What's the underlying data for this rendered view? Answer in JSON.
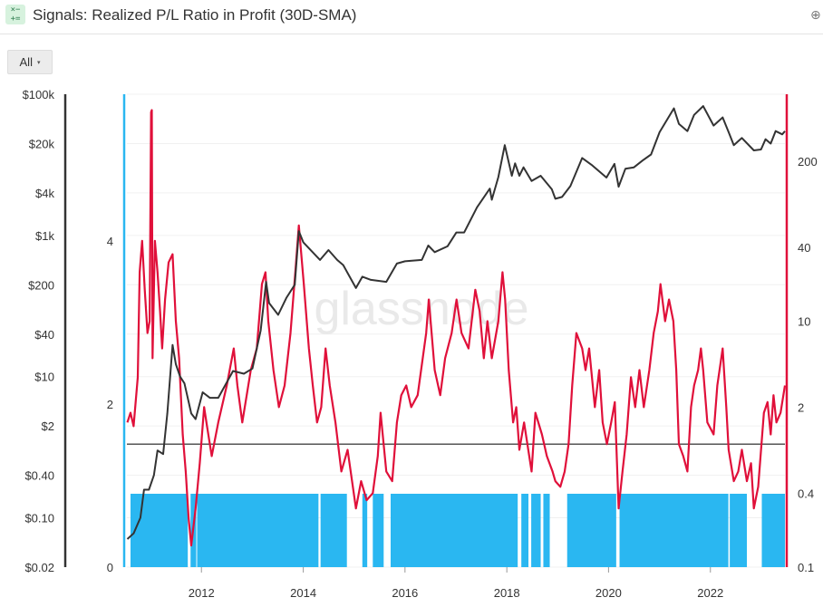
{
  "header": {
    "title": "Signals: Realized P/L Ratio in Profit (30D-SMA)",
    "icon_name": "calculator-icon",
    "zoom_icon_name": "zoom-in-icon"
  },
  "toolbar": {
    "filter_label": "All",
    "filter_caret": "▾"
  },
  "watermark": "glassnode",
  "chart_data": {
    "type": "line",
    "title": "Signals: Realized P/L Ratio in Profit (30D-SMA)",
    "xlabel": "",
    "ylabel": "",
    "x_range": [
      "2010-07-15",
      "2023-06-20"
    ],
    "grid": {
      "horizontal": true,
      "vertical": false
    },
    "x_ticks": [
      "2012",
      "2014",
      "2016",
      "2018",
      "2020",
      "2022"
    ],
    "axes": {
      "price": {
        "position": "far-left",
        "scale": "log",
        "range": [
          0.02,
          100000
        ],
        "color": "#333333",
        "ticks": [
          0.02,
          0.1,
          0.4,
          2,
          10,
          40,
          200,
          1000,
          4000,
          20000,
          100000
        ],
        "tick_labels": [
          "$0.02",
          "$0.10",
          "$0.40",
          "$2",
          "$10",
          "$40",
          "$200",
          "$1k",
          "$4k",
          "$20k",
          "$100k"
        ]
      },
      "signal": {
        "position": "left",
        "scale": "linear",
        "range": [
          0,
          5.8
        ],
        "color": "#2ab7f1",
        "ticks": [
          0,
          2,
          4
        ],
        "tick_labels": [
          "0",
          "2",
          "4"
        ]
      },
      "ratio": {
        "position": "right",
        "scale": "log",
        "range": [
          0.1,
          700
        ],
        "color": "#e0103a",
        "ticks": [
          0.1,
          0.4,
          2,
          10,
          40,
          200
        ],
        "tick_labels": [
          "0.1",
          "0.4",
          "2",
          "10",
          "40",
          "200"
        ]
      }
    },
    "reference_line": {
      "axis": "ratio",
      "value": 1,
      "color": "#555555"
    },
    "series": [
      {
        "kind": "line",
        "axis": "price",
        "color": "#333333",
        "points": [
          [
            "2010-07-18",
            0.05
          ],
          [
            "2010-09-01",
            0.06
          ],
          [
            "2010-10-20",
            0.1
          ],
          [
            "2010-11-15",
            0.25
          ],
          [
            "2010-12-20",
            0.25
          ],
          [
            "2011-01-25",
            0.4
          ],
          [
            "2011-02-20",
            0.9
          ],
          [
            "2011-04-01",
            0.8
          ],
          [
            "2011-05-01",
            3
          ],
          [
            "2011-06-08",
            28
          ],
          [
            "2011-07-01",
            15
          ],
          [
            "2011-08-01",
            10
          ],
          [
            "2011-09-01",
            8
          ],
          [
            "2011-10-20",
            3
          ],
          [
            "2011-11-20",
            2.5
          ],
          [
            "2012-01-10",
            6
          ],
          [
            "2012-03-01",
            5
          ],
          [
            "2012-05-01",
            5
          ],
          [
            "2012-08-15",
            12
          ],
          [
            "2012-11-01",
            11
          ],
          [
            "2013-01-01",
            13
          ],
          [
            "2013-03-01",
            45
          ],
          [
            "2013-04-09",
            220
          ],
          [
            "2013-05-01",
            110
          ],
          [
            "2013-07-05",
            75
          ],
          [
            "2013-09-01",
            130
          ],
          [
            "2013-11-01",
            200
          ],
          [
            "2013-11-30",
            1150
          ],
          [
            "2014-01-01",
            800
          ],
          [
            "2014-03-01",
            600
          ],
          [
            "2014-05-01",
            450
          ],
          [
            "2014-07-01",
            620
          ],
          [
            "2014-09-01",
            450
          ],
          [
            "2014-10-15",
            380
          ],
          [
            "2015-01-14",
            180
          ],
          [
            "2015-03-01",
            260
          ],
          [
            "2015-05-01",
            235
          ],
          [
            "2015-08-20",
            220
          ],
          [
            "2015-11-04",
            400
          ],
          [
            "2016-01-01",
            430
          ],
          [
            "2016-05-01",
            450
          ],
          [
            "2016-06-16",
            720
          ],
          [
            "2016-08-01",
            580
          ],
          [
            "2016-11-01",
            700
          ],
          [
            "2017-01-04",
            1100
          ],
          [
            "2017-03-01",
            1100
          ],
          [
            "2017-06-01",
            2500
          ],
          [
            "2017-09-01",
            4600
          ],
          [
            "2017-09-15",
            3200
          ],
          [
            "2017-11-01",
            6700
          ],
          [
            "2017-12-17",
            19000
          ],
          [
            "2018-02-06",
            7000
          ],
          [
            "2018-03-01",
            10500
          ],
          [
            "2018-04-01",
            7000
          ],
          [
            "2018-05-01",
            9200
          ],
          [
            "2018-06-28",
            5900
          ],
          [
            "2018-09-01",
            7000
          ],
          [
            "2018-11-20",
            4500
          ],
          [
            "2018-12-15",
            3300
          ],
          [
            "2019-02-01",
            3500
          ],
          [
            "2019-04-02",
            5000
          ],
          [
            "2019-06-26",
            12500
          ],
          [
            "2019-09-01",
            10000
          ],
          [
            "2019-12-17",
            6600
          ],
          [
            "2020-02-12",
            10300
          ],
          [
            "2020-03-13",
            4900
          ],
          [
            "2020-05-01",
            8800
          ],
          [
            "2020-07-01",
            9200
          ],
          [
            "2020-09-01",
            11500
          ],
          [
            "2020-11-01",
            14000
          ],
          [
            "2021-01-01",
            29000
          ],
          [
            "2021-04-14",
            63000
          ],
          [
            "2021-05-20",
            38000
          ],
          [
            "2021-07-20",
            30000
          ],
          [
            "2021-09-06",
            51000
          ],
          [
            "2021-11-10",
            68000
          ],
          [
            "2022-01-24",
            36000
          ],
          [
            "2022-03-30",
            47000
          ],
          [
            "2022-05-12",
            29000
          ],
          [
            "2022-06-18",
            19000
          ],
          [
            "2022-08-15",
            24000
          ],
          [
            "2022-11-09",
            16000
          ],
          [
            "2022-12-30",
            16500
          ],
          [
            "2023-02-01",
            23000
          ],
          [
            "2023-03-10",
            20000
          ],
          [
            "2023-04-14",
            30000
          ],
          [
            "2023-06-01",
            27000
          ],
          [
            "2023-06-20",
            30000
          ]
        ]
      },
      {
        "kind": "line",
        "axis": "ratio",
        "color": "#e0103a",
        "points": [
          [
            "2010-07-18",
            1.5
          ],
          [
            "2010-08-10",
            1.8
          ],
          [
            "2010-09-01",
            1.4
          ],
          [
            "2010-10-01",
            3.5
          ],
          [
            "2010-10-15",
            25
          ],
          [
            "2010-11-01",
            45
          ],
          [
            "2010-11-20",
            18
          ],
          [
            "2010-12-10",
            8
          ],
          [
            "2010-12-25",
            10
          ],
          [
            "2011-01-05",
            500
          ],
          [
            "2011-01-10",
            520
          ],
          [
            "2011-01-15",
            5
          ],
          [
            "2011-02-01",
            45
          ],
          [
            "2011-02-20",
            25
          ],
          [
            "2011-03-10",
            12
          ],
          [
            "2011-03-25",
            6
          ],
          [
            "2011-04-15",
            15
          ],
          [
            "2011-05-10",
            30
          ],
          [
            "2011-06-08",
            35
          ],
          [
            "2011-07-01",
            10
          ],
          [
            "2011-07-25",
            5
          ],
          [
            "2011-08-20",
            1.2
          ],
          [
            "2011-09-10",
            0.6
          ],
          [
            "2011-10-01",
            0.25
          ],
          [
            "2011-10-20",
            0.15
          ],
          [
            "2011-11-20",
            0.3
          ],
          [
            "2011-12-20",
            0.7
          ],
          [
            "2012-01-20",
            2
          ],
          [
            "2012-02-10",
            1.4
          ],
          [
            "2012-03-15",
            0.8
          ],
          [
            "2012-05-01",
            1.5
          ],
          [
            "2012-07-01",
            3
          ],
          [
            "2012-08-20",
            6
          ],
          [
            "2012-09-15",
            3
          ],
          [
            "2012-10-20",
            1.5
          ],
          [
            "2012-12-20",
            4
          ],
          [
            "2013-02-01",
            6
          ],
          [
            "2013-03-10",
            20
          ],
          [
            "2013-04-05",
            25
          ],
          [
            "2013-04-25",
            10
          ],
          [
            "2013-06-01",
            4
          ],
          [
            "2013-07-10",
            2
          ],
          [
            "2013-08-20",
            3
          ],
          [
            "2013-10-01",
            8
          ],
          [
            "2013-11-05",
            25
          ],
          [
            "2013-11-30",
            60
          ],
          [
            "2014-01-05",
            20
          ],
          [
            "2014-02-10",
            6
          ],
          [
            "2014-03-10",
            3
          ],
          [
            "2014-04-10",
            1.5
          ],
          [
            "2014-05-10",
            2
          ],
          [
            "2014-06-10",
            6
          ],
          [
            "2014-07-10",
            3
          ],
          [
            "2014-08-20",
            1.5
          ],
          [
            "2014-10-01",
            0.6
          ],
          [
            "2014-11-15",
            0.9
          ],
          [
            "2015-01-14",
            0.3
          ],
          [
            "2015-02-20",
            0.5
          ],
          [
            "2015-04-01",
            0.35
          ],
          [
            "2015-05-15",
            0.4
          ],
          [
            "2015-06-20",
            0.8
          ],
          [
            "2015-07-10",
            1.8
          ],
          [
            "2015-08-20",
            0.6
          ],
          [
            "2015-10-01",
            0.5
          ],
          [
            "2015-11-04",
            1.5
          ],
          [
            "2015-12-05",
            2.5
          ],
          [
            "2016-01-10",
            3
          ],
          [
            "2016-02-15",
            2
          ],
          [
            "2016-04-01",
            2.5
          ],
          [
            "2016-06-01",
            8
          ],
          [
            "2016-06-20",
            15
          ],
          [
            "2016-08-01",
            4
          ],
          [
            "2016-09-10",
            2.5
          ],
          [
            "2016-10-15",
            5
          ],
          [
            "2016-12-01",
            8
          ],
          [
            "2017-01-05",
            15
          ],
          [
            "2017-02-10",
            8
          ],
          [
            "2017-04-01",
            6
          ],
          [
            "2017-05-20",
            18
          ],
          [
            "2017-06-20",
            12
          ],
          [
            "2017-07-20",
            5
          ],
          [
            "2017-08-15",
            10
          ],
          [
            "2017-09-15",
            5
          ],
          [
            "2017-11-01",
            10
          ],
          [
            "2017-12-01",
            25
          ],
          [
            "2017-12-20",
            15
          ],
          [
            "2018-01-15",
            4
          ],
          [
            "2018-02-15",
            1.5
          ],
          [
            "2018-03-10",
            2
          ],
          [
            "2018-04-01",
            0.9
          ],
          [
            "2018-05-05",
            1.5
          ],
          [
            "2018-06-28",
            0.6
          ],
          [
            "2018-07-25",
            1.8
          ],
          [
            "2018-09-10",
            1.2
          ],
          [
            "2018-10-15",
            0.8
          ],
          [
            "2018-11-25",
            0.6
          ],
          [
            "2018-12-15",
            0.5
          ],
          [
            "2019-01-20",
            0.45
          ],
          [
            "2019-02-20",
            0.6
          ],
          [
            "2019-03-20",
            1
          ],
          [
            "2019-04-15",
            3
          ],
          [
            "2019-05-15",
            8
          ],
          [
            "2019-06-26",
            6
          ],
          [
            "2019-07-20",
            4
          ],
          [
            "2019-08-15",
            6
          ],
          [
            "2019-09-25",
            2
          ],
          [
            "2019-10-26",
            4
          ],
          [
            "2019-11-20",
            1.5
          ],
          [
            "2019-12-20",
            1
          ],
          [
            "2020-01-20",
            1.5
          ],
          [
            "2020-02-15",
            2.2
          ],
          [
            "2020-03-13",
            0.3
          ],
          [
            "2020-04-10",
            0.6
          ],
          [
            "2020-05-10",
            1.2
          ],
          [
            "2020-06-10",
            3.5
          ],
          [
            "2020-07-10",
            2
          ],
          [
            "2020-08-10",
            4
          ],
          [
            "2020-09-10",
            2
          ],
          [
            "2020-10-20",
            4
          ],
          [
            "2020-11-20",
            8
          ],
          [
            "2020-12-20",
            12
          ],
          [
            "2021-01-08",
            20
          ],
          [
            "2021-02-10",
            10
          ],
          [
            "2021-03-10",
            15
          ],
          [
            "2021-04-10",
            10
          ],
          [
            "2021-05-01",
            4
          ],
          [
            "2021-05-20",
            1
          ],
          [
            "2021-06-20",
            0.8
          ],
          [
            "2021-07-20",
            0.6
          ],
          [
            "2021-08-15",
            2
          ],
          [
            "2021-09-06",
            3
          ],
          [
            "2021-10-05",
            4
          ],
          [
            "2021-10-25",
            6
          ],
          [
            "2021-11-10",
            4
          ],
          [
            "2021-12-10",
            1.5
          ],
          [
            "2022-01-24",
            1.2
          ],
          [
            "2022-02-20",
            3
          ],
          [
            "2022-03-30",
            6
          ],
          [
            "2022-04-25",
            2
          ],
          [
            "2022-05-12",
            0.9
          ],
          [
            "2022-06-18",
            0.5
          ],
          [
            "2022-07-20",
            0.6
          ],
          [
            "2022-08-15",
            0.9
          ],
          [
            "2022-09-20",
            0.5
          ],
          [
            "2022-10-20",
            0.7
          ],
          [
            "2022-11-09",
            0.3
          ],
          [
            "2022-12-10",
            0.45
          ],
          [
            "2023-01-20",
            1.8
          ],
          [
            "2023-02-15",
            2.2
          ],
          [
            "2023-03-10",
            1.2
          ],
          [
            "2023-03-30",
            2.5
          ],
          [
            "2023-04-20",
            1.5
          ],
          [
            "2023-05-20",
            1.8
          ],
          [
            "2023-06-20",
            3
          ]
        ]
      },
      {
        "kind": "area",
        "axis": "signal",
        "color": "#2ab7f1",
        "value": 0.9,
        "active_ranges": [
          [
            "2010-08-10",
            "2011-09-25"
          ],
          [
            "2011-10-15",
            "2011-11-25"
          ],
          [
            "2011-12-01",
            "2014-04-20"
          ],
          [
            "2014-05-05",
            "2014-11-10"
          ],
          [
            "2015-03-01",
            "2015-04-05"
          ],
          [
            "2015-05-15",
            "2015-08-01"
          ],
          [
            "2015-09-20",
            "2018-03-20"
          ],
          [
            "2018-04-15",
            "2018-06-05"
          ],
          [
            "2018-06-25",
            "2018-09-01"
          ],
          [
            "2018-09-20",
            "2018-11-05"
          ],
          [
            "2019-03-10",
            "2020-02-25"
          ],
          [
            "2020-03-20",
            "2022-05-10"
          ],
          [
            "2022-05-20",
            "2022-09-20"
          ],
          [
            "2023-01-05",
            "2023-06-20"
          ]
        ]
      }
    ]
  }
}
